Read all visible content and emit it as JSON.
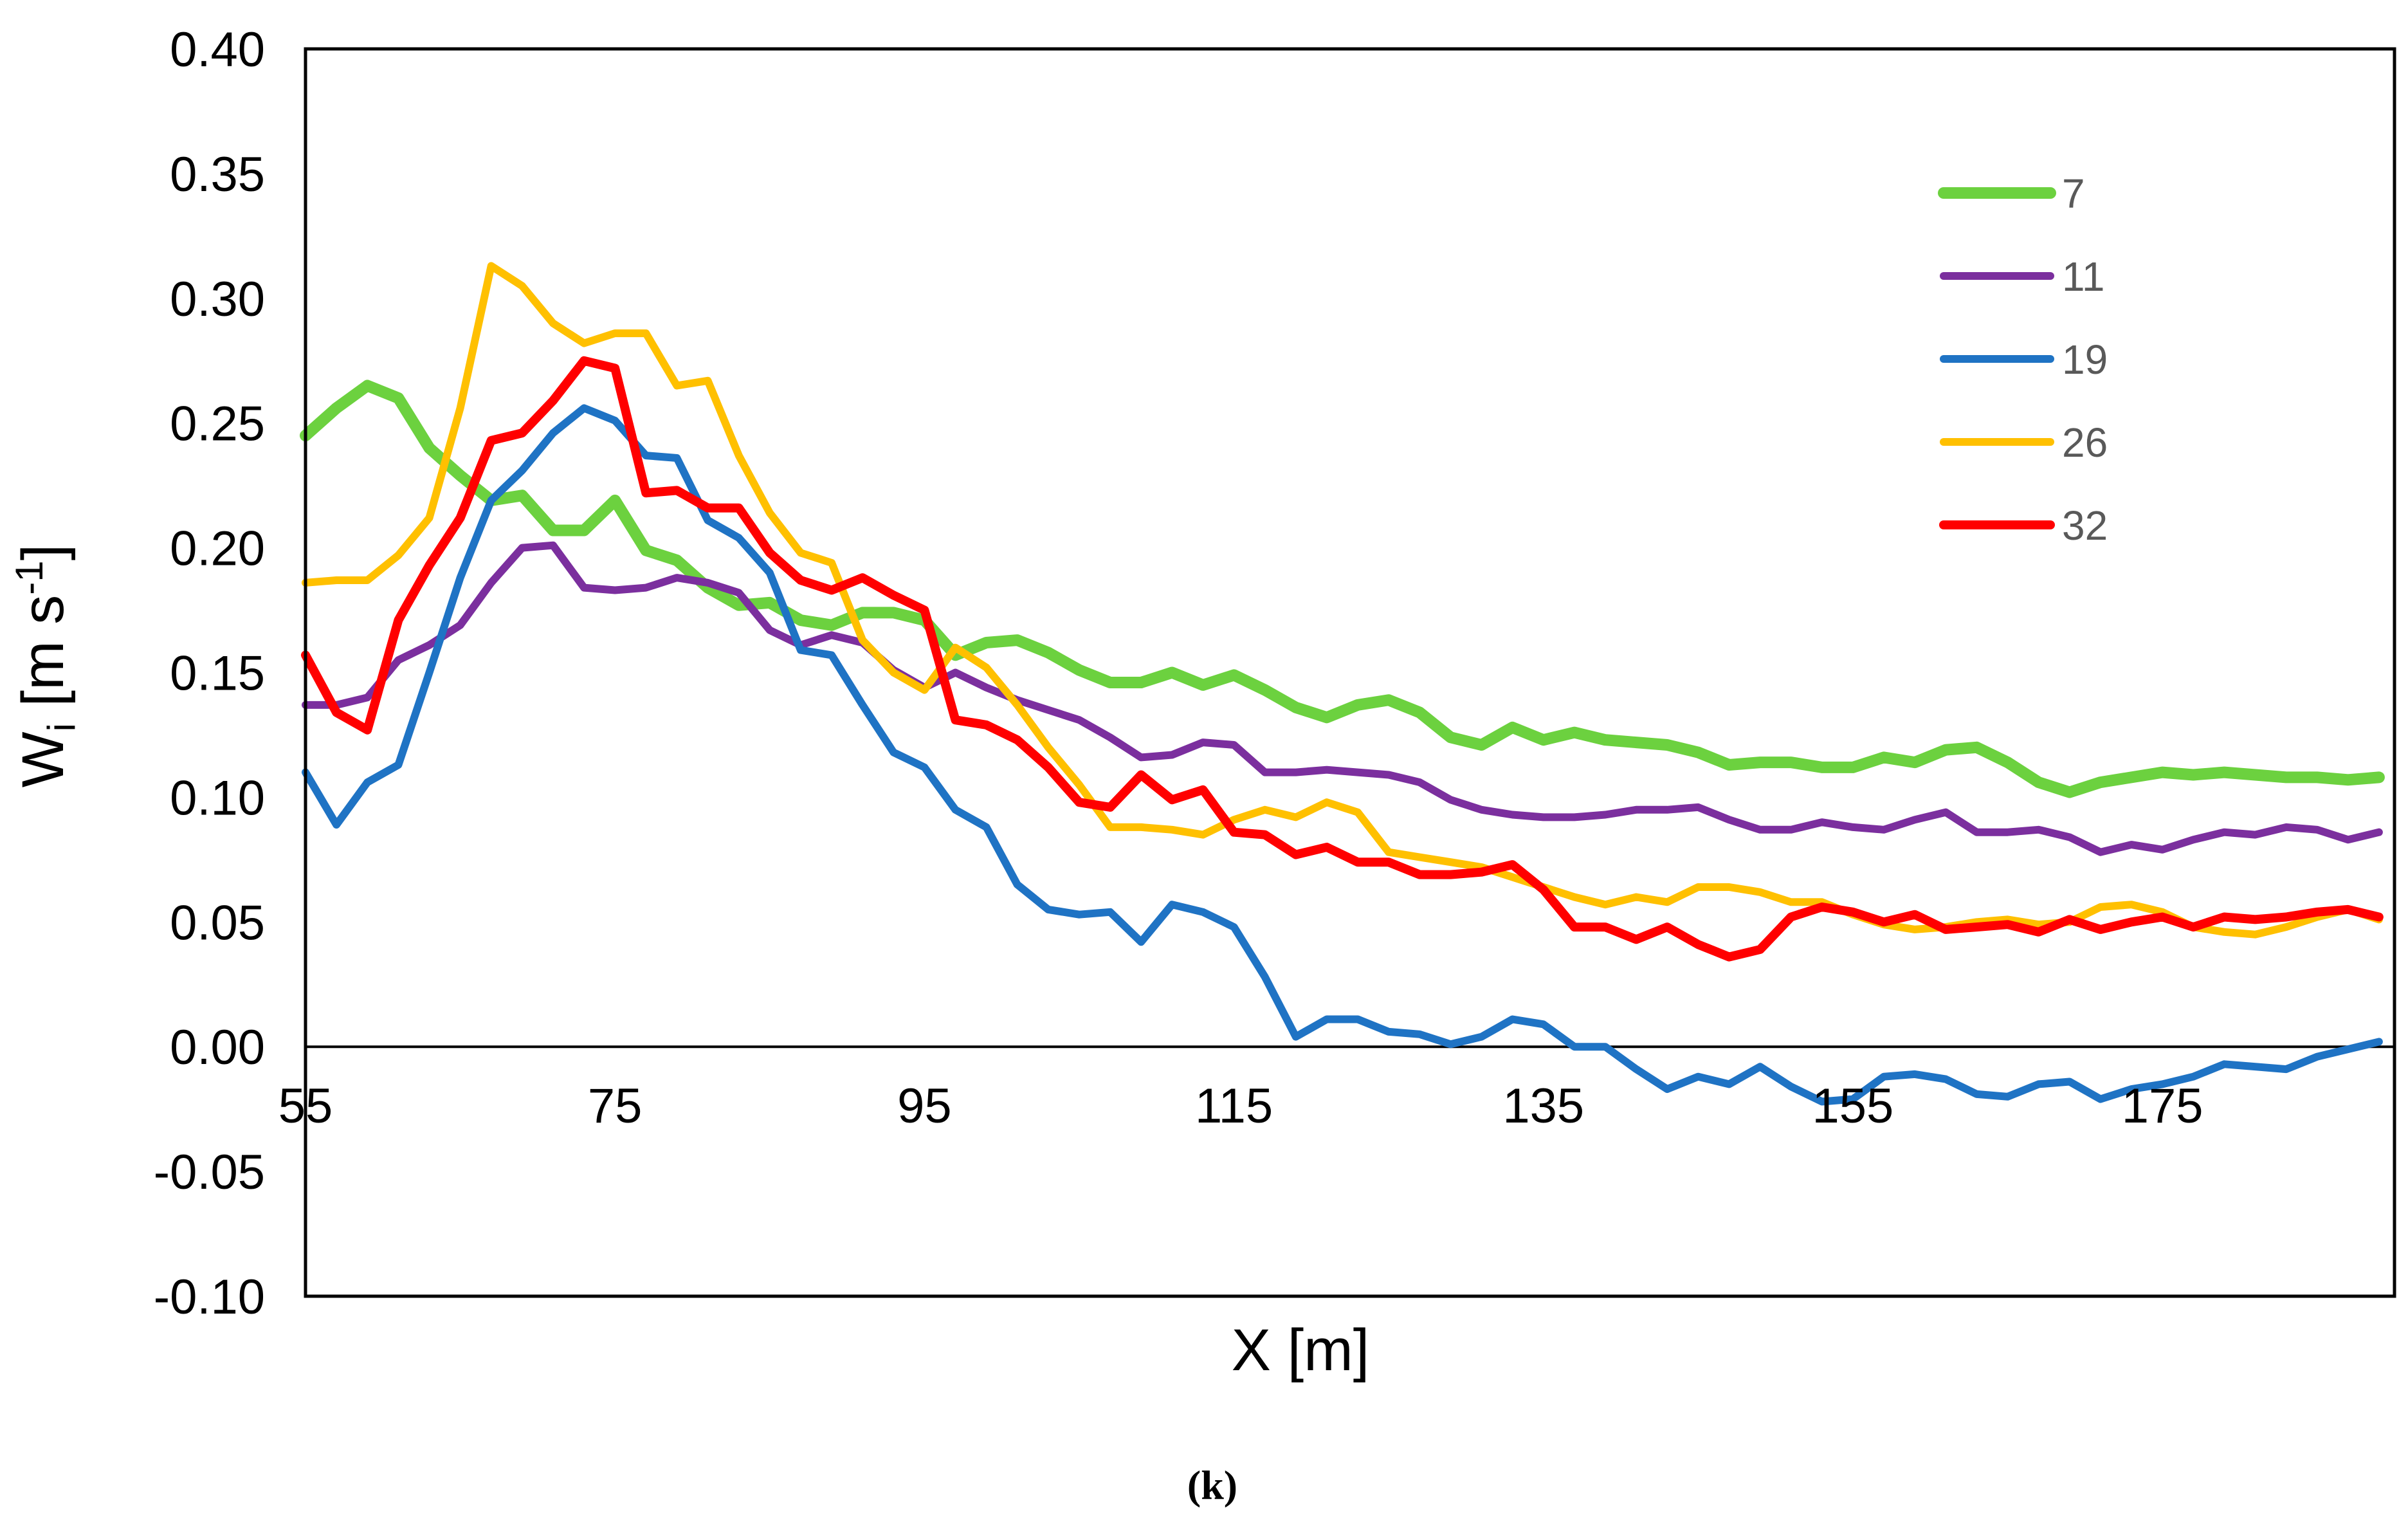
{
  "chart_data": {
    "type": "line",
    "title": "",
    "caption": "(k)",
    "xlabel": "X [m]",
    "ylabel": {
      "base": "W",
      "sub": "i",
      "unit_open": " [m s",
      "sup": "-1",
      "unit_close": "]"
    },
    "xlim": [
      55,
      190
    ],
    "ylim": [
      -0.1,
      0.4
    ],
    "x_ticks": [
      55,
      75,
      95,
      115,
      135,
      155,
      175
    ],
    "x_tick_labels": [
      "55",
      "75",
      "95",
      "115",
      "135",
      "155",
      "175"
    ],
    "y_ticks": [
      -0.1,
      -0.05,
      0.0,
      0.05,
      0.1,
      0.15,
      0.2,
      0.25,
      0.3,
      0.35,
      0.4
    ],
    "y_tick_labels": [
      "-0.10",
      "-0.05",
      "0.00",
      "0.05",
      "0.10",
      "0.15",
      "0.20",
      "0.25",
      "0.30",
      "0.35",
      "0.40"
    ],
    "grid": false,
    "legend_position": "top-right",
    "x": [
      55,
      57,
      59,
      61,
      63,
      65,
      67,
      69,
      71,
      73,
      75,
      77,
      79,
      81,
      83,
      85,
      87,
      89,
      91,
      93,
      95,
      97,
      99,
      101,
      103,
      105,
      107,
      109,
      111,
      113,
      115,
      117,
      119,
      121,
      123,
      125,
      127,
      129,
      131,
      133,
      135,
      137,
      139,
      141,
      143,
      145,
      147,
      149,
      151,
      153,
      155,
      157,
      159,
      161,
      163,
      165,
      167,
      169,
      171,
      173,
      175,
      177,
      179,
      181,
      183,
      185,
      187,
      189
    ],
    "series": [
      {
        "name": "7",
        "color": "#6cd13f",
        "width": 18,
        "values": [
          0.245,
          0.256,
          0.265,
          0.26,
          0.24,
          0.229,
          0.219,
          0.221,
          0.207,
          0.207,
          0.219,
          0.199,
          0.195,
          0.184,
          0.177,
          0.178,
          0.171,
          0.169,
          0.174,
          0.174,
          0.171,
          0.157,
          0.162,
          0.163,
          0.158,
          0.151,
          0.146,
          0.146,
          0.15,
          0.145,
          0.149,
          0.143,
          0.136,
          0.132,
          0.137,
          0.139,
          0.134,
          0.124,
          0.121,
          0.128,
          0.123,
          0.126,
          0.123,
          0.122,
          0.121,
          0.118,
          0.113,
          0.114,
          0.114,
          0.112,
          0.112,
          0.116,
          0.114,
          0.119,
          0.12,
          0.114,
          0.106,
          0.102,
          0.106,
          0.108,
          0.11,
          0.109,
          0.11,
          0.109,
          0.108,
          0.108,
          0.107,
          0.108
        ]
      },
      {
        "name": "11",
        "color": "#7b2f9e",
        "width": 12,
        "values": [
          0.137,
          0.137,
          0.14,
          0.155,
          0.161,
          0.169,
          0.186,
          0.2,
          0.201,
          0.184,
          0.183,
          0.184,
          0.188,
          0.186,
          0.182,
          0.167,
          0.161,
          0.165,
          0.162,
          0.151,
          0.144,
          0.15,
          0.144,
          0.139,
          0.135,
          0.131,
          0.124,
          0.116,
          0.117,
          0.122,
          0.121,
          0.11,
          0.11,
          0.111,
          0.11,
          0.109,
          0.106,
          0.099,
          0.095,
          0.093,
          0.092,
          0.092,
          0.093,
          0.095,
          0.095,
          0.096,
          0.091,
          0.087,
          0.087,
          0.09,
          0.088,
          0.087,
          0.091,
          0.094,
          0.086,
          0.086,
          0.087,
          0.084,
          0.078,
          0.081,
          0.079,
          0.083,
          0.086,
          0.085,
          0.088,
          0.087,
          0.083,
          0.086
        ]
      },
      {
        "name": "19",
        "color": "#1f73c4",
        "width": 12,
        "values": [
          0.11,
          0.089,
          0.106,
          0.113,
          0.15,
          0.188,
          0.219,
          0.231,
          0.246,
          0.256,
          0.251,
          0.237,
          0.236,
          0.211,
          0.204,
          0.19,
          0.159,
          0.157,
          0.137,
          0.118,
          0.112,
          0.095,
          0.088,
          0.065,
          0.055,
          0.053,
          0.054,
          0.042,
          0.057,
          0.054,
          0.048,
          0.028,
          0.004,
          0.011,
          0.011,
          0.006,
          0.005,
          0.001,
          0.004,
          0.011,
          0.009,
          0.0,
          0.0,
          -0.009,
          -0.017,
          -0.012,
          -0.015,
          -0.008,
          -0.016,
          -0.022,
          -0.021,
          -0.012,
          -0.011,
          -0.013,
          -0.019,
          -0.02,
          -0.015,
          -0.014,
          -0.021,
          -0.017,
          -0.015,
          -0.012,
          -0.007,
          -0.008,
          -0.009,
          -0.004,
          -0.001,
          0.002
        ]
      },
      {
        "name": "26",
        "color": "#ffc000",
        "width": 12,
        "values": [
          0.186,
          0.187,
          0.187,
          0.197,
          0.212,
          0.256,
          0.313,
          0.305,
          0.29,
          0.282,
          0.286,
          0.286,
          0.265,
          0.267,
          0.237,
          0.214,
          0.198,
          0.194,
          0.163,
          0.15,
          0.143,
          0.16,
          0.152,
          0.137,
          0.12,
          0.105,
          0.088,
          0.088,
          0.087,
          0.085,
          0.091,
          0.095,
          0.092,
          0.098,
          0.094,
          0.078,
          0.076,
          0.074,
          0.072,
          0.068,
          0.064,
          0.06,
          0.057,
          0.06,
          0.058,
          0.064,
          0.064,
          0.062,
          0.058,
          0.058,
          0.053,
          0.049,
          0.047,
          0.048,
          0.05,
          0.051,
          0.049,
          0.05,
          0.056,
          0.057,
          0.054,
          0.048,
          0.046,
          0.045,
          0.048,
          0.052,
          0.055,
          0.051
        ]
      },
      {
        "name": "32",
        "color": "#ff0000",
        "width": 14,
        "values": [
          0.157,
          0.134,
          0.127,
          0.171,
          0.193,
          0.212,
          0.243,
          0.246,
          0.259,
          0.275,
          0.272,
          0.222,
          0.223,
          0.216,
          0.216,
          0.198,
          0.187,
          0.183,
          0.188,
          0.181,
          0.175,
          0.131,
          0.129,
          0.123,
          0.112,
          0.098,
          0.096,
          0.109,
          0.099,
          0.103,
          0.086,
          0.085,
          0.077,
          0.08,
          0.074,
          0.074,
          0.069,
          0.069,
          0.07,
          0.073,
          0.063,
          0.048,
          0.048,
          0.043,
          0.048,
          0.041,
          0.036,
          0.039,
          0.052,
          0.056,
          0.054,
          0.05,
          0.053,
          0.047,
          0.048,
          0.049,
          0.046,
          0.051,
          0.047,
          0.05,
          0.052,
          0.048,
          0.052,
          0.051,
          0.052,
          0.054,
          0.055,
          0.052
        ]
      }
    ]
  }
}
